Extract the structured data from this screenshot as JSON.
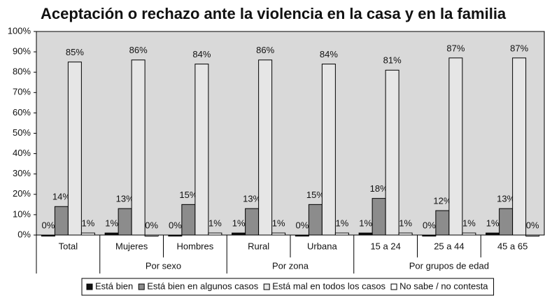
{
  "chart_data": {
    "type": "bar",
    "title": "Aceptación o rechazo ante la violencia en la casa y en la familia",
    "categories": [
      "Total",
      "Mujeres",
      "Hombres",
      "Rural",
      "Urbana",
      "15 a 24",
      "25 a 44",
      "45 a 65"
    ],
    "groups": [
      {
        "name": "Por sexo",
        "categories": [
          "Mujeres",
          "Hombres"
        ]
      },
      {
        "name": "Por zona",
        "categories": [
          "Rural",
          "Urbana"
        ]
      },
      {
        "name": "Por grupos de edad",
        "categories": [
          "15 a 24",
          "25 a 44",
          "45 a 65"
        ]
      }
    ],
    "series": [
      {
        "name": "Está bien",
        "color": "#111111",
        "values": [
          0,
          1,
          0,
          1,
          0,
          1,
          0,
          1
        ],
        "value_labels": [
          "0%",
          "1%",
          "0%",
          "1%",
          "0%",
          "1%",
          "0%",
          "1%"
        ]
      },
      {
        "name": "Está bien en algunos casos",
        "color": "#8c8c8c",
        "values": [
          14,
          13,
          15,
          13,
          15,
          18,
          12,
          13
        ],
        "value_labels": [
          "14%",
          "13%",
          "15%",
          "13%",
          "15%",
          "18%",
          "12%",
          "13%"
        ]
      },
      {
        "name": "Está mal en todos los casos",
        "color": "#e6e6e6",
        "values": [
          85,
          86,
          84,
          86,
          84,
          81,
          87,
          87
        ],
        "value_labels": [
          "85%",
          "86%",
          "84%",
          "86%",
          "84%",
          "81%",
          "87%",
          "87%"
        ]
      },
      {
        "name": "No sabe / no contesta",
        "color": "#ffffff",
        "values": [
          1,
          0,
          1,
          1,
          1,
          1,
          1,
          0
        ],
        "value_labels": [
          "1%",
          "0%",
          "1%",
          "1%",
          "1%",
          "1%",
          "1%",
          "0%"
        ]
      }
    ],
    "ylim": [
      0,
      100
    ],
    "yticks": [
      {
        "value": 0,
        "label": "0%"
      },
      {
        "value": 10,
        "label": "10%"
      },
      {
        "value": 20,
        "label": "20%"
      },
      {
        "value": 30,
        "label": "30%"
      },
      {
        "value": 40,
        "label": "40%"
      },
      {
        "value": 50,
        "label": "50%"
      },
      {
        "value": 60,
        "label": "60%"
      },
      {
        "value": 70,
        "label": "70%"
      },
      {
        "value": 80,
        "label": "80%"
      },
      {
        "value": 90,
        "label": "90%"
      },
      {
        "value": 100,
        "label": "100%"
      }
    ],
    "grid": false
  }
}
